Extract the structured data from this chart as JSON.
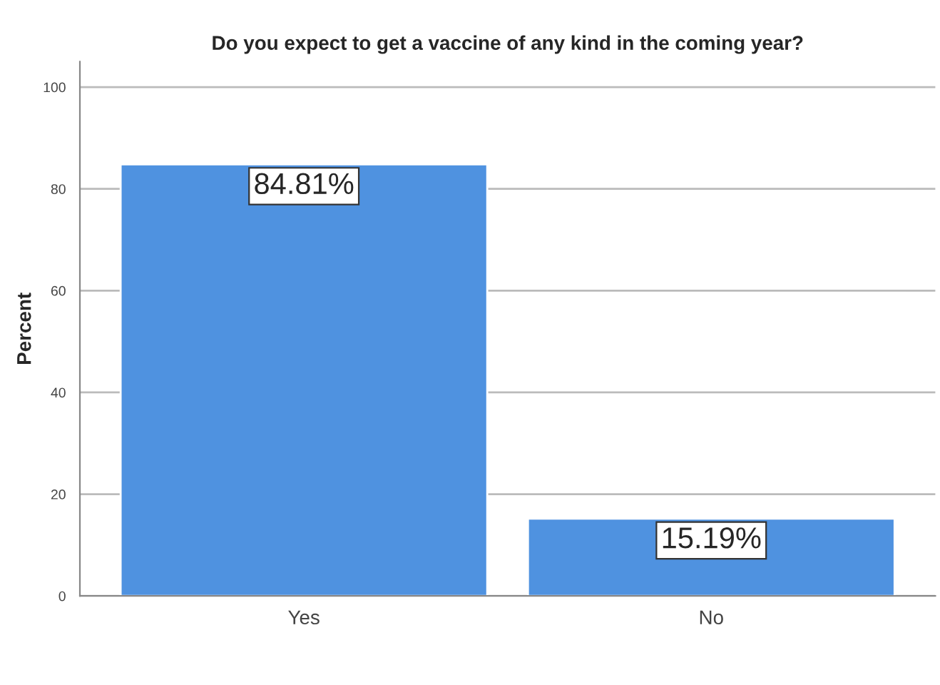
{
  "chart_data": {
    "type": "bar",
    "title": "Do you expect to get a vaccine of any kind in the coming year?",
    "ylabel": "Percent",
    "categories": [
      "Yes",
      "No"
    ],
    "values": [
      84.81,
      15.19
    ],
    "color": "#4f92e0",
    "value_labels": [
      "84.81%",
      "15.19%"
    ],
    "ylim": [
      0,
      105
    ],
    "yticks": [
      0,
      20,
      40,
      60,
      80,
      100
    ],
    "grid": "y"
  }
}
